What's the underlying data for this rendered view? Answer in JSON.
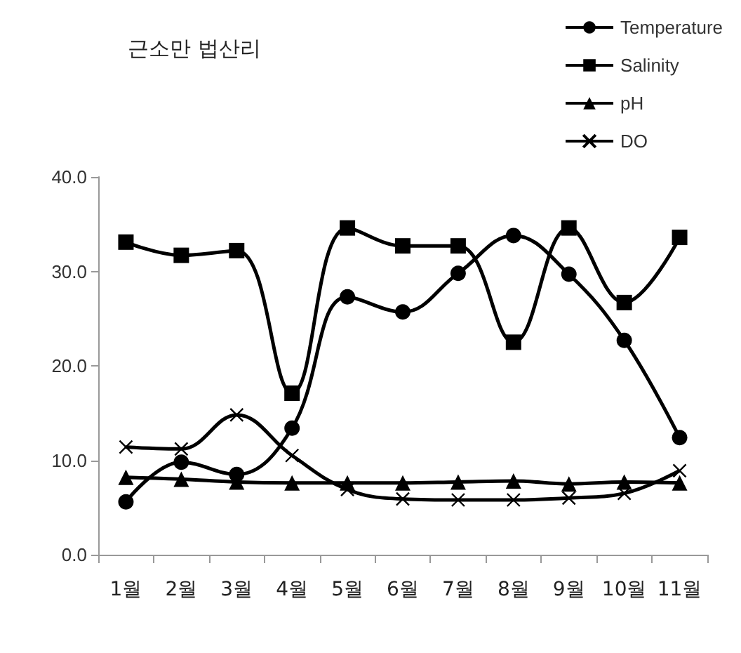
{
  "chart_data": {
    "type": "line",
    "title": "근소만 법산리",
    "categories": [
      "1월",
      "2월",
      "3월",
      "4월",
      "5월",
      "6월",
      "7월",
      "8월",
      "9월",
      "10월",
      "11월"
    ],
    "series": [
      {
        "name": "Temperature",
        "color": "#000000",
        "marker": "circle",
        "values": [
          5.6,
          9.8,
          8.5,
          13.4,
          27.3,
          25.7,
          29.8,
          33.8,
          29.7,
          22.7,
          12.4
        ]
      },
      {
        "name": "Salinity",
        "color": "#000000",
        "marker": "square",
        "values": [
          33.1,
          31.7,
          32.2,
          17.1,
          34.6,
          32.7,
          32.7,
          22.5,
          34.6,
          26.7,
          33.6
        ]
      },
      {
        "name": "pH",
        "color": "#000000",
        "marker": "triangle",
        "values": [
          8.2,
          8.0,
          7.7,
          7.6,
          7.6,
          7.6,
          7.7,
          7.8,
          7.5,
          7.7,
          7.6
        ]
      },
      {
        "name": "DO",
        "color": "#000000",
        "marker": "cross",
        "values": [
          11.4,
          11.2,
          14.8,
          10.5,
          6.9,
          5.9,
          5.8,
          5.8,
          6.0,
          6.5,
          8.9
        ]
      }
    ],
    "ylim": [
      0,
      40
    ],
    "yticks": [
      {
        "value": 0,
        "label": "0.0"
      },
      {
        "value": 10,
        "label": "10.0"
      },
      {
        "value": 20,
        "label": "20.0"
      },
      {
        "value": 30,
        "label": "30.0"
      },
      {
        "value": 40,
        "label": "40.0"
      }
    ],
    "grid": false,
    "legend": "top right",
    "line_style": "solid"
  }
}
